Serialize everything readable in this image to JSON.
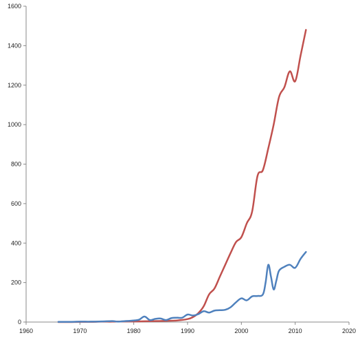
{
  "chart_data": {
    "type": "line",
    "title": "",
    "xlabel": "",
    "ylabel": "",
    "xlim": [
      1960,
      2020
    ],
    "ylim": [
      0,
      1600
    ],
    "x_ticks": [
      1960,
      1970,
      1980,
      1990,
      2000,
      2010,
      2020
    ],
    "y_ticks": [
      0,
      200,
      400,
      600,
      800,
      1000,
      1200,
      1400,
      1600
    ],
    "x_tick_labels": [
      "1960",
      "1970",
      "1980",
      "1990",
      "2000",
      "2010",
      "2020"
    ],
    "y_tick_labels": [
      "0",
      "200",
      "400",
      "600",
      "800",
      "1000",
      "1200",
      "1400",
      "1600"
    ],
    "grid": false,
    "legend": "none",
    "series": [
      {
        "color": "#c0504d",
        "x": [
          1966,
          1968,
          1970,
          1972,
          1974,
          1976,
          1978,
          1980,
          1982,
          1984,
          1986,
          1988,
          1990,
          1991,
          1992,
          1993,
          1994,
          1995,
          1996,
          1997,
          1998,
          1999,
          2000,
          2001,
          2002,
          2003,
          2004,
          2005,
          2006,
          2007,
          2008,
          2009,
          2010,
          2011,
          2012
        ],
        "values": [
          0,
          0,
          1,
          1,
          2,
          2,
          3,
          3,
          4,
          5,
          6,
          8,
          15,
          25,
          45,
          80,
          140,
          170,
          230,
          290,
          350,
          405,
          430,
          500,
          560,
          740,
          770,
          880,
          1000,
          1140,
          1190,
          1270,
          1220,
          1350,
          1480
        ]
      },
      {
        "color": "#4f81bd",
        "x": [
          1966,
          1968,
          1970,
          1972,
          1974,
          1976,
          1977,
          1978,
          1980,
          1981,
          1982,
          1983,
          1984,
          1985,
          1986,
          1987,
          1988,
          1989,
          1990,
          1991,
          1992,
          1993,
          1994,
          1995,
          1996,
          1997,
          1998,
          1999,
          2000,
          2001,
          2002,
          2003,
          2004,
          2004.5,
          2005,
          2005.5,
          2006,
          2006.5,
          2007,
          2008,
          2009,
          2010,
          2011,
          2012
        ],
        "values": [
          1,
          1,
          2,
          2,
          3,
          5,
          2,
          4,
          8,
          12,
          28,
          10,
          16,
          18,
          10,
          20,
          22,
          22,
          38,
          33,
          40,
          55,
          48,
          58,
          60,
          62,
          75,
          100,
          120,
          110,
          130,
          132,
          140,
          200,
          290,
          230,
          165,
          210,
          260,
          280,
          290,
          275,
          320,
          355
        ]
      }
    ]
  }
}
